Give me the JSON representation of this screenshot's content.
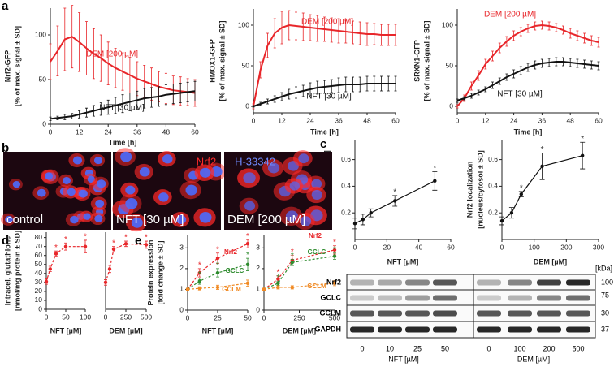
{
  "panel_letters": [
    "a",
    "b",
    "c",
    "d",
    "e"
  ],
  "chart_data": [
    {
      "type": "line",
      "ylabel": [
        "Nrf2-GFP",
        "[% of max. signal ± SD]"
      ],
      "xlabel": "Time [h]",
      "x": [
        0,
        3,
        6,
        9,
        12,
        15,
        18,
        21,
        24,
        27,
        30,
        33,
        36,
        39,
        42,
        45,
        48,
        51,
        54,
        57,
        60
      ],
      "xlim": [
        0,
        60
      ],
      "xticks": [
        0,
        12,
        24,
        36,
        48,
        60
      ],
      "ylim": [
        0,
        130
      ],
      "yticks": [
        0,
        50,
        100
      ],
      "series": [
        {
          "name": "DEM [200 µM]",
          "color": "#e8262a",
          "values": [
            70,
            82,
            95,
            98,
            92,
            85,
            79,
            74,
            68,
            63,
            59,
            55,
            51,
            48,
            45,
            42,
            40,
            38,
            37,
            36,
            35
          ],
          "errors": [
            20,
            28,
            35,
            35,
            33,
            30,
            28,
            26,
            24,
            22,
            21,
            20,
            19,
            18,
            18,
            17,
            17,
            16,
            16,
            15,
            15
          ]
        },
        {
          "name": "NFT [30 µM]",
          "color": "#111111",
          "values": [
            6,
            7,
            8,
            9,
            11,
            13,
            15,
            17,
            19,
            21,
            23,
            25,
            27,
            29,
            30,
            31,
            33,
            34,
            35,
            36,
            37
          ],
          "errors": [
            2,
            2,
            3,
            3,
            4,
            5,
            6,
            7,
            8,
            9,
            10,
            10,
            10,
            11,
            11,
            11,
            11,
            11,
            11,
            11,
            11
          ]
        }
      ]
    },
    {
      "type": "line",
      "ylabel": [
        "HMOX1-GFP",
        "[% of max. signal ± SD]"
      ],
      "xlabel": "Time [h]",
      "x": [
        0,
        3,
        6,
        9,
        12,
        15,
        18,
        21,
        24,
        27,
        30,
        33,
        36,
        39,
        42,
        45,
        48,
        51,
        54,
        57,
        60
      ],
      "xlim": [
        0,
        60
      ],
      "xticks": [
        0,
        12,
        24,
        36,
        48,
        60
      ],
      "ylim": [
        -8,
        120
      ],
      "yticks": [
        0,
        50,
        100
      ],
      "series": [
        {
          "name": "DEM [200 µM]",
          "color": "#e8262a",
          "values": [
            0,
            45,
            75,
            90,
            97,
            100,
            99,
            98,
            97,
            96,
            95,
            94,
            93,
            92,
            91,
            90,
            89,
            89,
            88,
            88,
            88
          ],
          "errors": [
            3,
            10,
            15,
            18,
            20,
            18,
            17,
            17,
            16,
            16,
            15,
            15,
            15,
            14,
            14,
            14,
            14,
            13,
            13,
            13,
            13
          ]
        },
        {
          "name": "NFT [30 µM]",
          "color": "#111111",
          "values": [
            0,
            3,
            6,
            9,
            12,
            15,
            17,
            19,
            21,
            23,
            24,
            25,
            26,
            27,
            27,
            27,
            28,
            28,
            28,
            28,
            28
          ],
          "errors": [
            1,
            2,
            3,
            4,
            5,
            6,
            7,
            7,
            8,
            8,
            8,
            8,
            9,
            9,
            9,
            9,
            9,
            9,
            9,
            9,
            9
          ]
        }
      ]
    },
    {
      "type": "line",
      "ylabel": [
        "SRXN1-GFP",
        "[% of max. signal ± SD]"
      ],
      "xlabel": "Time [h]",
      "x": [
        0,
        3,
        6,
        9,
        12,
        15,
        18,
        21,
        24,
        27,
        30,
        33,
        36,
        39,
        42,
        45,
        48,
        51,
        54,
        57,
        60
      ],
      "xlim": [
        0,
        60
      ],
      "xticks": [
        0,
        12,
        24,
        36,
        48,
        60
      ],
      "ylim": [
        -8,
        120
      ],
      "yticks": [
        0,
        50,
        100
      ],
      "series": [
        {
          "name": "DEM [200 µM]",
          "color": "#e8262a",
          "values": [
            0,
            10,
            25,
            38,
            52,
            62,
            72,
            80,
            87,
            92,
            96,
            99,
            100,
            99,
            97,
            94,
            90,
            87,
            84,
            81,
            79
          ],
          "errors": [
            2,
            4,
            5,
            6,
            6,
            6,
            6,
            6,
            6,
            5,
            5,
            5,
            5,
            5,
            5,
            5,
            6,
            6,
            6,
            6,
            6
          ]
        },
        {
          "name": "NFT [30 µM]",
          "color": "#111111",
          "values": [
            7,
            10,
            13,
            17,
            21,
            26,
            31,
            36,
            40,
            44,
            48,
            51,
            53,
            54,
            55,
            55,
            54,
            53,
            52,
            51,
            50
          ],
          "errors": [
            2,
            2,
            3,
            3,
            3,
            4,
            4,
            4,
            5,
            5,
            5,
            5,
            5,
            5,
            5,
            5,
            5,
            5,
            5,
            5,
            5
          ]
        }
      ]
    },
    {
      "type": "line",
      "markers": true,
      "ylabel": [
        "Nrf2 localization",
        "[nucleus/cytosol ± SD]"
      ],
      "xlabel": "NFT [µM]",
      "x": [
        0,
        5,
        10,
        25,
        50
      ],
      "xlim": [
        0,
        60
      ],
      "xticks": [
        0,
        20,
        40,
        60
      ],
      "ylim": [
        0,
        0.75
      ],
      "yticks": [
        0.2,
        0.4,
        0.6
      ],
      "series": [
        {
          "color": "#111111",
          "values": [
            0.12,
            0.15,
            0.2,
            0.29,
            0.44
          ],
          "errors": [
            0.04,
            0.04,
            0.03,
            0.04,
            0.07
          ],
          "point_labels": [
            null,
            null,
            null,
            "*",
            "*"
          ]
        }
      ]
    },
    {
      "type": "line",
      "markers": true,
      "ylabel": [
        "Nrf2 localization",
        "[nucleus/cytosol ± SD]"
      ],
      "xlabel": "DEM [µM]",
      "x": [
        0,
        30,
        60,
        125,
        250
      ],
      "xlim": [
        0,
        300
      ],
      "xticks": [
        0,
        100,
        200,
        300
      ],
      "ylim": [
        0,
        0.75
      ],
      "yticks": [
        0.2,
        0.4,
        0.6
      ],
      "series": [
        {
          "color": "#111111",
          "values": [
            0.14,
            0.2,
            0.34,
            0.55,
            0.63
          ],
          "errors": [
            0.03,
            0.04,
            0.02,
            0.1,
            0.1
          ],
          "point_labels": [
            null,
            null,
            "*",
            "*",
            "*"
          ]
        }
      ]
    },
    {
      "type": "line",
      "markers": true,
      "dashed": true,
      "ylabel": [
        "Intracel. glutathione",
        "[nmol/mg protein ± SD]"
      ],
      "xlabel": "NFT [µM]",
      "x": [
        0,
        10,
        25,
        50,
        100
      ],
      "xlim": [
        0,
        100
      ],
      "xticks": [
        0,
        50,
        100
      ],
      "ylim": [
        0,
        86
      ],
      "yticks": [
        0,
        10,
        20,
        30,
        40,
        50,
        60,
        70,
        80
      ],
      "series": [
        {
          "color": "#e8262a",
          "values": [
            31,
            45,
            62,
            70,
            70
          ],
          "errors": [
            3,
            3,
            3,
            4,
            7
          ],
          "point_labels": [
            null,
            null,
            "*",
            "*",
            "*"
          ]
        }
      ]
    },
    {
      "type": "line",
      "markers": true,
      "dashed": true,
      "xlabel": "DEM [µM]",
      "x": [
        0,
        50,
        100,
        250,
        500
      ],
      "xlim": [
        0,
        500
      ],
      "xticks": [
        0,
        250,
        500
      ],
      "ylim": [
        0,
        86
      ],
      "series": [
        {
          "color": "#e8262a",
          "values": [
            30,
            45,
            67,
            73,
            72
          ],
          "errors": [
            3,
            4,
            3,
            3,
            4
          ],
          "point_labels": [
            null,
            null,
            "*",
            "*",
            "*"
          ]
        }
      ]
    },
    {
      "type": "line",
      "markers": true,
      "dashed": true,
      "ylabel": [
        "Protein expression",
        "[fold change ± SD]"
      ],
      "xlabel": "NFT [µM]",
      "x": [
        0,
        10,
        25,
        50
      ],
      "xlim": [
        0,
        50
      ],
      "xticks": [
        0,
        25,
        50
      ],
      "ylim": [
        0,
        3.6
      ],
      "yticks": [
        0,
        1,
        2,
        3
      ],
      "series": [
        {
          "name": "Nrf2",
          "color": "#e8262a",
          "values": [
            1,
            1.8,
            2.5,
            3.2
          ],
          "errors": [
            0.05,
            0.2,
            0.25,
            0.2
          ],
          "point_labels": [
            null,
            "*",
            "*",
            "*"
          ]
        },
        {
          "name": "GCLC",
          "color": "#2e8b2e",
          "values": [
            1,
            1.4,
            1.8,
            2.2
          ],
          "errors": [
            0.05,
            0.15,
            0.2,
            0.3
          ],
          "point_labels": [
            null,
            "*",
            "*",
            "*"
          ]
        },
        {
          "name": "GCLM",
          "color": "#f08a24",
          "values": [
            1,
            1.05,
            1.1,
            1.3
          ],
          "errors": [
            0.05,
            0.08,
            0.1,
            0.15
          ]
        }
      ]
    },
    {
      "type": "line",
      "markers": true,
      "dashed": true,
      "xlabel": "DEM [µM]",
      "x": [
        0,
        100,
        200,
        500
      ],
      "xlim": [
        0,
        500
      ],
      "xticks": [
        0,
        250,
        500
      ],
      "ylim": [
        0,
        3.6
      ],
      "yticks": [
        0,
        1,
        2,
        3
      ],
      "series": [
        {
          "name": "Nrf2",
          "color": "#e8262a",
          "values": [
            1,
            1.5,
            2.4,
            2.9
          ],
          "errors": [
            0.05,
            0.15,
            0.25,
            0.2
          ],
          "point_labels": [
            null,
            "*",
            "*",
            "*"
          ]
        },
        {
          "name": "GCLC",
          "color": "#2e8b2e",
          "values": [
            1,
            1.3,
            2.3,
            2.6
          ],
          "errors": [
            0.05,
            0.1,
            0.15,
            0.15
          ],
          "point_labels": [
            null,
            "*",
            "*",
            "*"
          ]
        },
        {
          "name": "GCLM",
          "color": "#f08a24",
          "values": [
            1,
            1.1,
            1.1,
            1.3
          ],
          "errors": [
            0.05,
            0.08,
            0.08,
            0.12
          ]
        }
      ]
    }
  ],
  "microscopy": {
    "images": [
      "control",
      "NFT [30 µM]",
      "DEM [200 µM]"
    ],
    "channels": [
      {
        "name": "Nrf2",
        "color": "#ff2a2a"
      },
      {
        "name": "H-33342",
        "color": "#4a6bff"
      }
    ]
  },
  "western_blot": {
    "rows": [
      "Nrf2",
      "GCLC",
      "GCLM",
      "GAPDH"
    ],
    "kda_header": "[kDa]",
    "kda": [
      100,
      75,
      30,
      37
    ],
    "groups": [
      {
        "name": "NFT [µM]",
        "lanes": [
          0,
          10,
          25,
          50
        ]
      },
      {
        "name": "DEM [µM]",
        "lanes": [
          0,
          100,
          200,
          500
        ]
      }
    ]
  }
}
